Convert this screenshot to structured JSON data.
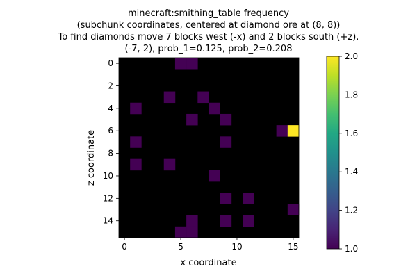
{
  "chart_data": {
    "type": "heatmap",
    "title_lines": [
      "minecraft:smithing_table frequency",
      "(subchunk coordinates, centered at diamond ore at (8, 8))",
      "To find diamonds move 7 blocks west (-x) and 2 blocks south (+z).",
      "(-7, 2), prob_1=0.125, prob_2=0.208"
    ],
    "xlabel": "x coordinate",
    "ylabel": "z coordinate",
    "grid_size": 16,
    "xlim": [
      -0.5,
      15.5
    ],
    "ylim": [
      15.5,
      -0.5
    ],
    "x_ticks": [
      0,
      5,
      10,
      15
    ],
    "y_ticks": [
      0,
      2,
      4,
      6,
      8,
      10,
      12,
      14
    ],
    "background_value": 0,
    "background_color": "#000000",
    "cells": [
      {
        "x": 5,
        "z": 0,
        "value": 1
      },
      {
        "x": 6,
        "z": 0,
        "value": 1
      },
      {
        "x": 4,
        "z": 3,
        "value": 1
      },
      {
        "x": 7,
        "z": 3,
        "value": 1
      },
      {
        "x": 1,
        "z": 4,
        "value": 1
      },
      {
        "x": 8,
        "z": 4,
        "value": 1
      },
      {
        "x": 6,
        "z": 5,
        "value": 1
      },
      {
        "x": 9,
        "z": 5,
        "value": 1
      },
      {
        "x": 14,
        "z": 6,
        "value": 1
      },
      {
        "x": 15,
        "z": 6,
        "value": 2
      },
      {
        "x": 1,
        "z": 7,
        "value": 1
      },
      {
        "x": 9,
        "z": 7,
        "value": 1
      },
      {
        "x": 1,
        "z": 9,
        "value": 1
      },
      {
        "x": 4,
        "z": 9,
        "value": 1
      },
      {
        "x": 8,
        "z": 10,
        "value": 1
      },
      {
        "x": 9,
        "z": 12,
        "value": 1
      },
      {
        "x": 11,
        "z": 12,
        "value": 1
      },
      {
        "x": 15,
        "z": 13,
        "value": 1
      },
      {
        "x": 6,
        "z": 14,
        "value": 1
      },
      {
        "x": 9,
        "z": 14,
        "value": 1
      },
      {
        "x": 11,
        "z": 14,
        "value": 1
      },
      {
        "x": 5,
        "z": 15,
        "value": 1
      },
      {
        "x": 6,
        "z": 15,
        "value": 1
      }
    ],
    "colorbar": {
      "colormap": "viridis",
      "range": [
        1.0,
        2.0
      ],
      "ticks": [
        "1.0",
        "1.2",
        "1.4",
        "1.6",
        "1.8",
        "2.0"
      ],
      "color_low": "#440154",
      "color_high": "#fde725"
    }
  }
}
